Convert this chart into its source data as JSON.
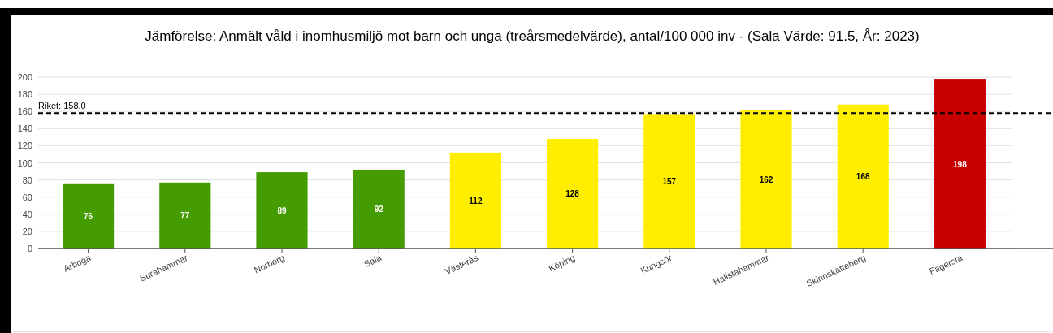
{
  "chart_data": {
    "type": "bar",
    "title": "Jämförelse: Anmält våld i inomhusmiljö mot barn och unga (treårsmedelvärde), antal/100 000 inv - (Sala Värde: 91.5, År: 2023)",
    "categories": [
      "Arboga",
      "Surahammar",
      "Norberg",
      "Sala",
      "Västerås",
      "Köping",
      "Kungsör",
      "Hallstahammar",
      "Skinnskatteberg",
      "Fagersta"
    ],
    "values": [
      76,
      77,
      89,
      92,
      112,
      128,
      157,
      162,
      168,
      198
    ],
    "colors": [
      "#459c00",
      "#459c00",
      "#459c00",
      "#459c00",
      "#ffee00",
      "#ffee00",
      "#ffee00",
      "#ffee00",
      "#ffee00",
      "#c80000"
    ],
    "ylim": [
      0,
      200
    ],
    "yticks": [
      0,
      20,
      40,
      60,
      80,
      100,
      120,
      140,
      160,
      180,
      200
    ],
    "grid": "y",
    "data_labels": true,
    "ref_lines": [
      {
        "axis": "y",
        "value": 158,
        "label": "Riket: 158.0",
        "color": "#000000",
        "line_style": "dashed"
      }
    ]
  }
}
